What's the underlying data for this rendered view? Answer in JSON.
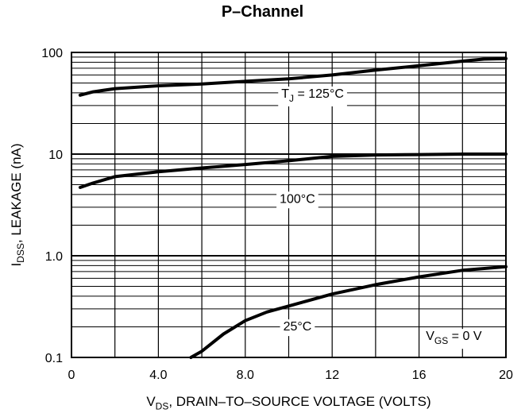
{
  "chart_data": {
    "type": "line",
    "title": "P–Channel",
    "xlabel": {
      "main": "V",
      "sub": "DS",
      "rest": ", DRAIN–TO–SOURCE VOLTAGE (VOLTS)"
    },
    "ylabel": {
      "main": "I",
      "sub": "DSS",
      "rest": ", LEAKAGE (nA)"
    },
    "x_ticks": [
      "0",
      "4.0",
      "8.0",
      "12",
      "16",
      "20"
    ],
    "y_ticks": [
      "100",
      "10",
      "1.0",
      "0.1"
    ],
    "xlim": [
      0,
      20
    ],
    "ylim": [
      0.1,
      100
    ],
    "y_scale": "log",
    "grid": true,
    "annotation": {
      "main": "V",
      "sub": "GS",
      "rest": " = 0 V"
    },
    "series": [
      {
        "name": "T_J = 125°C",
        "label": {
          "main": "T",
          "sub": "J",
          "rest": " = 125°C"
        },
        "x": [
          0.4,
          1,
          2,
          4,
          6,
          8,
          10,
          12,
          14,
          16,
          18,
          19,
          20
        ],
        "y": [
          38,
          41,
          44,
          47,
          49,
          52,
          55,
          60,
          67,
          74,
          82,
          86,
          87
        ]
      },
      {
        "name": "100°C",
        "label": {
          "main": "100°C",
          "sub": "",
          "rest": ""
        },
        "x": [
          0.4,
          1,
          2,
          4,
          6,
          8,
          10,
          12,
          14,
          16,
          18,
          20
        ],
        "y": [
          4.7,
          5.2,
          6.0,
          6.7,
          7.3,
          7.9,
          8.6,
          9.5,
          9.8,
          9.9,
          10,
          10
        ]
      },
      {
        "name": "25°C",
        "label": {
          "main": "25°C",
          "sub": "",
          "rest": ""
        },
        "x": [
          5.5,
          6,
          7,
          8,
          9,
          10,
          12,
          14,
          16,
          18,
          20
        ],
        "y": [
          0.1,
          0.115,
          0.17,
          0.23,
          0.28,
          0.32,
          0.42,
          0.52,
          0.62,
          0.72,
          0.78
        ]
      }
    ]
  }
}
